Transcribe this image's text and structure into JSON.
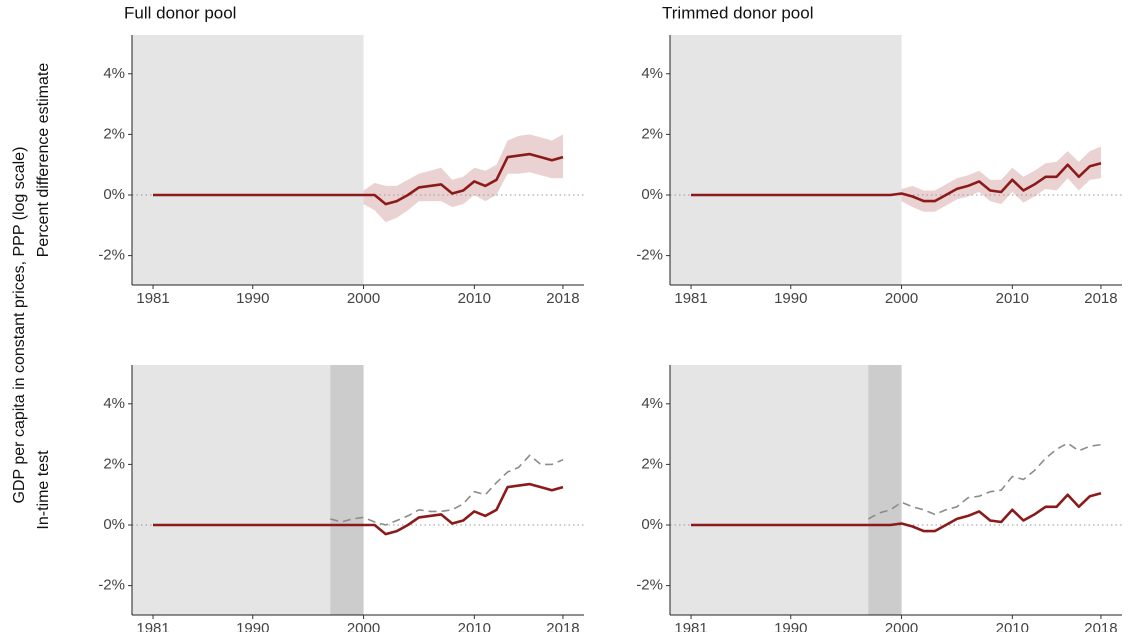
{
  "y_label": "GDP per capita in constant prices, PPP (log scale)",
  "row_labels": [
    "Percent difference estimate",
    "In-time test"
  ],
  "chart_data": [
    {
      "type": "line",
      "title": "Full donor pool",
      "x": [
        1981,
        1982,
        1983,
        1984,
        1985,
        1986,
        1987,
        1988,
        1989,
        1990,
        1991,
        1992,
        1993,
        1994,
        1995,
        1996,
        1997,
        1998,
        1999,
        2000,
        2001,
        2002,
        2003,
        2004,
        2005,
        2006,
        2007,
        2008,
        2009,
        2010,
        2011,
        2012,
        2013,
        2014,
        2015,
        2016,
        2017,
        2018
      ],
      "series": [
        {
          "color": "#8b1a1a",
          "style": "solid",
          "values": [
            0,
            0,
            0,
            0,
            0,
            0,
            0,
            0,
            0,
            0,
            0,
            0,
            0,
            0,
            0,
            0,
            0,
            0,
            0,
            0,
            0,
            -0.3,
            -0.2,
            0,
            0.25,
            0.3,
            0.35,
            0.05,
            0.15,
            0.45,
            0.3,
            0.5,
            1.25,
            1.3,
            1.35,
            1.25,
            1.15,
            1.25
          ]
        }
      ],
      "band": {
        "color": "#e8caca",
        "upper": [
          null,
          null,
          null,
          null,
          null,
          null,
          null,
          null,
          null,
          null,
          null,
          null,
          null,
          null,
          null,
          null,
          null,
          null,
          null,
          0.15,
          0.4,
          0.3,
          0.3,
          0.5,
          0.7,
          0.8,
          0.9,
          0.5,
          0.6,
          0.9,
          0.8,
          1.0,
          1.8,
          1.95,
          2.0,
          1.9,
          1.8,
          2.0
        ],
        "lower": [
          null,
          null,
          null,
          null,
          null,
          null,
          null,
          null,
          null,
          null,
          null,
          null,
          null,
          null,
          null,
          null,
          null,
          null,
          null,
          -0.3,
          -0.5,
          -0.9,
          -0.75,
          -0.5,
          -0.2,
          -0.2,
          -0.2,
          -0.4,
          -0.3,
          0,
          -0.2,
          0,
          0.7,
          0.7,
          0.75,
          0.65,
          0.55,
          0.55
        ]
      },
      "treatment_year": 2000,
      "shade_color": "#e5e5e5",
      "hline": 0,
      "xlim": [
        1979.1,
        2019.9
      ],
      "xticks": [
        1981,
        1990,
        2000,
        2010,
        2018
      ],
      "ylim": [
        -2.97,
        5.28
      ],
      "yticks": [
        {
          "value": -2,
          "label": "-2%"
        },
        {
          "value": 0,
          "label": "0%"
        },
        {
          "value": 2,
          "label": "2%"
        },
        {
          "value": 4,
          "label": "4%"
        }
      ]
    },
    {
      "type": "line",
      "title": "Trimmed donor pool",
      "x": [
        1981,
        1982,
        1983,
        1984,
        1985,
        1986,
        1987,
        1988,
        1989,
        1990,
        1991,
        1992,
        1993,
        1994,
        1995,
        1996,
        1997,
        1998,
        1999,
        2000,
        2001,
        2002,
        2003,
        2004,
        2005,
        2006,
        2007,
        2008,
        2009,
        2010,
        2011,
        2012,
        2013,
        2014,
        2015,
        2016,
        2017,
        2018
      ],
      "series": [
        {
          "color": "#8b1a1a",
          "style": "solid",
          "values": [
            0,
            0,
            0,
            0,
            0,
            0,
            0,
            0,
            0,
            0,
            0,
            0,
            0,
            0,
            0,
            0,
            0,
            0,
            0,
            0.05,
            -0.05,
            -0.2,
            -0.2,
            0,
            0.2,
            0.3,
            0.45,
            0.15,
            0.1,
            0.5,
            0.15,
            0.35,
            0.6,
            0.6,
            1.0,
            0.6,
            0.95,
            1.05
          ]
        }
      ],
      "band": {
        "color": "#e8caca",
        "upper": [
          null,
          null,
          null,
          null,
          null,
          null,
          null,
          null,
          null,
          null,
          null,
          null,
          null,
          null,
          null,
          null,
          null,
          null,
          null,
          0.2,
          0.3,
          0.15,
          0.15,
          0.35,
          0.55,
          0.65,
          0.8,
          0.5,
          0.5,
          0.9,
          0.6,
          0.8,
          1.05,
          1.1,
          1.45,
          1.1,
          1.45,
          1.6
        ],
        "lower": [
          null,
          null,
          null,
          null,
          null,
          null,
          null,
          null,
          null,
          null,
          null,
          null,
          null,
          null,
          null,
          null,
          null,
          null,
          null,
          -0.2,
          -0.4,
          -0.55,
          -0.55,
          -0.35,
          -0.15,
          -0.05,
          0.1,
          -0.2,
          -0.3,
          0.1,
          -0.25,
          -0.05,
          0.2,
          0.15,
          0.55,
          0.15,
          0.5,
          0.55
        ]
      },
      "treatment_year": 2000,
      "shade_color": "#e5e5e5",
      "hline": 0,
      "xlim": [
        1979.1,
        2019.9
      ],
      "xticks": [
        1981,
        1990,
        2000,
        2010,
        2018
      ],
      "ylim": [
        -2.97,
        5.28
      ],
      "yticks": [
        {
          "value": -2,
          "label": "-2%"
        },
        {
          "value": 0,
          "label": "0%"
        },
        {
          "value": 2,
          "label": "2%"
        },
        {
          "value": 4,
          "label": "4%"
        }
      ]
    },
    {
      "type": "line",
      "x": [
        1981,
        1982,
        1983,
        1984,
        1985,
        1986,
        1987,
        1988,
        1989,
        1990,
        1991,
        1992,
        1993,
        1994,
        1995,
        1996,
        1997,
        1998,
        1999,
        2000,
        2001,
        2002,
        2003,
        2004,
        2005,
        2006,
        2007,
        2008,
        2009,
        2010,
        2011,
        2012,
        2013,
        2014,
        2015,
        2016,
        2017,
        2018
      ],
      "series": [
        {
          "color": "#8c8c8c",
          "style": "dashed",
          "values": [
            null,
            null,
            null,
            null,
            null,
            null,
            null,
            null,
            null,
            null,
            null,
            null,
            null,
            null,
            null,
            null,
            0.2,
            0.1,
            0.2,
            0.25,
            0.1,
            0,
            0.15,
            0.3,
            0.5,
            0.45,
            0.45,
            0.5,
            0.7,
            1.1,
            1.0,
            1.4,
            1.75,
            1.9,
            2.3,
            2.0,
            2.0,
            2.15
          ]
        },
        {
          "color": "#8b1a1a",
          "style": "solid",
          "values": [
            0,
            0,
            0,
            0,
            0,
            0,
            0,
            0,
            0,
            0,
            0,
            0,
            0,
            0,
            0,
            0,
            0,
            0,
            0,
            0,
            0,
            -0.3,
            -0.2,
            0,
            0.25,
            0.3,
            0.35,
            0.05,
            0.15,
            0.45,
            0.3,
            0.5,
            1.25,
            1.3,
            1.35,
            1.25,
            1.15,
            1.25
          ]
        }
      ],
      "treatment_year": 2000,
      "placebo_year": 1997,
      "shade_color": "#e5e5e5",
      "placebo_color": "#cccccc",
      "hline": 0,
      "xlim": [
        1979.1,
        2019.9
      ],
      "xticks": [
        1981,
        1990,
        2000,
        2010,
        2018
      ],
      "ylim": [
        -2.97,
        5.28
      ],
      "yticks": [
        {
          "value": -2,
          "label": "-2%"
        },
        {
          "value": 0,
          "label": "0%"
        },
        {
          "value": 2,
          "label": "2%"
        },
        {
          "value": 4,
          "label": "4%"
        }
      ]
    },
    {
      "type": "line",
      "x": [
        1981,
        1982,
        1983,
        1984,
        1985,
        1986,
        1987,
        1988,
        1989,
        1990,
        1991,
        1992,
        1993,
        1994,
        1995,
        1996,
        1997,
        1998,
        1999,
        2000,
        2001,
        2002,
        2003,
        2004,
        2005,
        2006,
        2007,
        2008,
        2009,
        2010,
        2011,
        2012,
        2013,
        2014,
        2015,
        2016,
        2017,
        2018
      ],
      "series": [
        {
          "color": "#8c8c8c",
          "style": "dashed",
          "values": [
            null,
            null,
            null,
            null,
            null,
            null,
            null,
            null,
            null,
            null,
            null,
            null,
            null,
            null,
            null,
            null,
            0.2,
            0.4,
            0.5,
            0.75,
            0.6,
            0.5,
            0.35,
            0.5,
            0.6,
            0.9,
            0.95,
            1.1,
            1.15,
            1.6,
            1.5,
            1.8,
            2.2,
            2.5,
            2.7,
            2.45,
            2.6,
            2.65
          ]
        },
        {
          "color": "#8b1a1a",
          "style": "solid",
          "values": [
            0,
            0,
            0,
            0,
            0,
            0,
            0,
            0,
            0,
            0,
            0,
            0,
            0,
            0,
            0,
            0,
            0,
            0,
            0,
            0.05,
            -0.05,
            -0.2,
            -0.2,
            0,
            0.2,
            0.3,
            0.45,
            0.15,
            0.1,
            0.5,
            0.15,
            0.35,
            0.6,
            0.6,
            1.0,
            0.6,
            0.95,
            1.05
          ]
        }
      ],
      "treatment_year": 2000,
      "placebo_year": 1997,
      "shade_color": "#e5e5e5",
      "placebo_color": "#cccccc",
      "hline": 0,
      "xlim": [
        1979.1,
        2019.9
      ],
      "xticks": [
        1981,
        1990,
        2000,
        2010,
        2018
      ],
      "ylim": [
        -2.97,
        5.28
      ],
      "yticks": [
        {
          "value": -2,
          "label": "-2%"
        },
        {
          "value": 0,
          "label": "0%"
        },
        {
          "value": 2,
          "label": "2%"
        },
        {
          "value": 4,
          "label": "4%"
        }
      ]
    }
  ]
}
